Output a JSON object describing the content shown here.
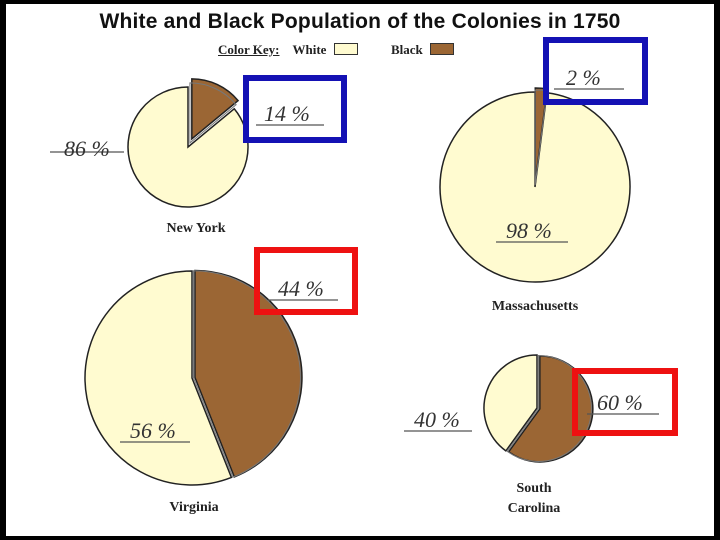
{
  "title": "White and Black Population of the Colonies in 1750",
  "color_key": {
    "label": "Color Key:",
    "white_label": "White",
    "black_label": "Black",
    "white_color": "#fffbd0",
    "black_color": "#9b6634"
  },
  "highlight_colors": {
    "blue": "#1411b4",
    "red": "#ee1111"
  },
  "chart_data": [
    {
      "type": "pie",
      "title": "New York",
      "categories": [
        "White",
        "Black"
      ],
      "values": [
        86,
        14
      ],
      "labels": [
        "86 %",
        "14 %"
      ],
      "highlighted_slice": "Black",
      "highlight": "blue"
    },
    {
      "type": "pie",
      "title": "Massachusetts",
      "categories": [
        "White",
        "Black"
      ],
      "values": [
        98,
        2
      ],
      "labels": [
        "98 %",
        "2 %"
      ],
      "highlighted_slice": "Black",
      "highlight": "blue"
    },
    {
      "type": "pie",
      "title": "Virginia",
      "categories": [
        "White",
        "Black"
      ],
      "values": [
        56,
        44
      ],
      "labels": [
        "56 %",
        "44 %"
      ],
      "highlighted_slice": "Black",
      "highlight": "red"
    },
    {
      "type": "pie",
      "title": "South Carolina",
      "categories": [
        "White",
        "Black"
      ],
      "values": [
        40,
        60
      ],
      "labels": [
        "40 %",
        "60 %"
      ],
      "highlighted_slice": "Black",
      "highlight": "red"
    }
  ]
}
